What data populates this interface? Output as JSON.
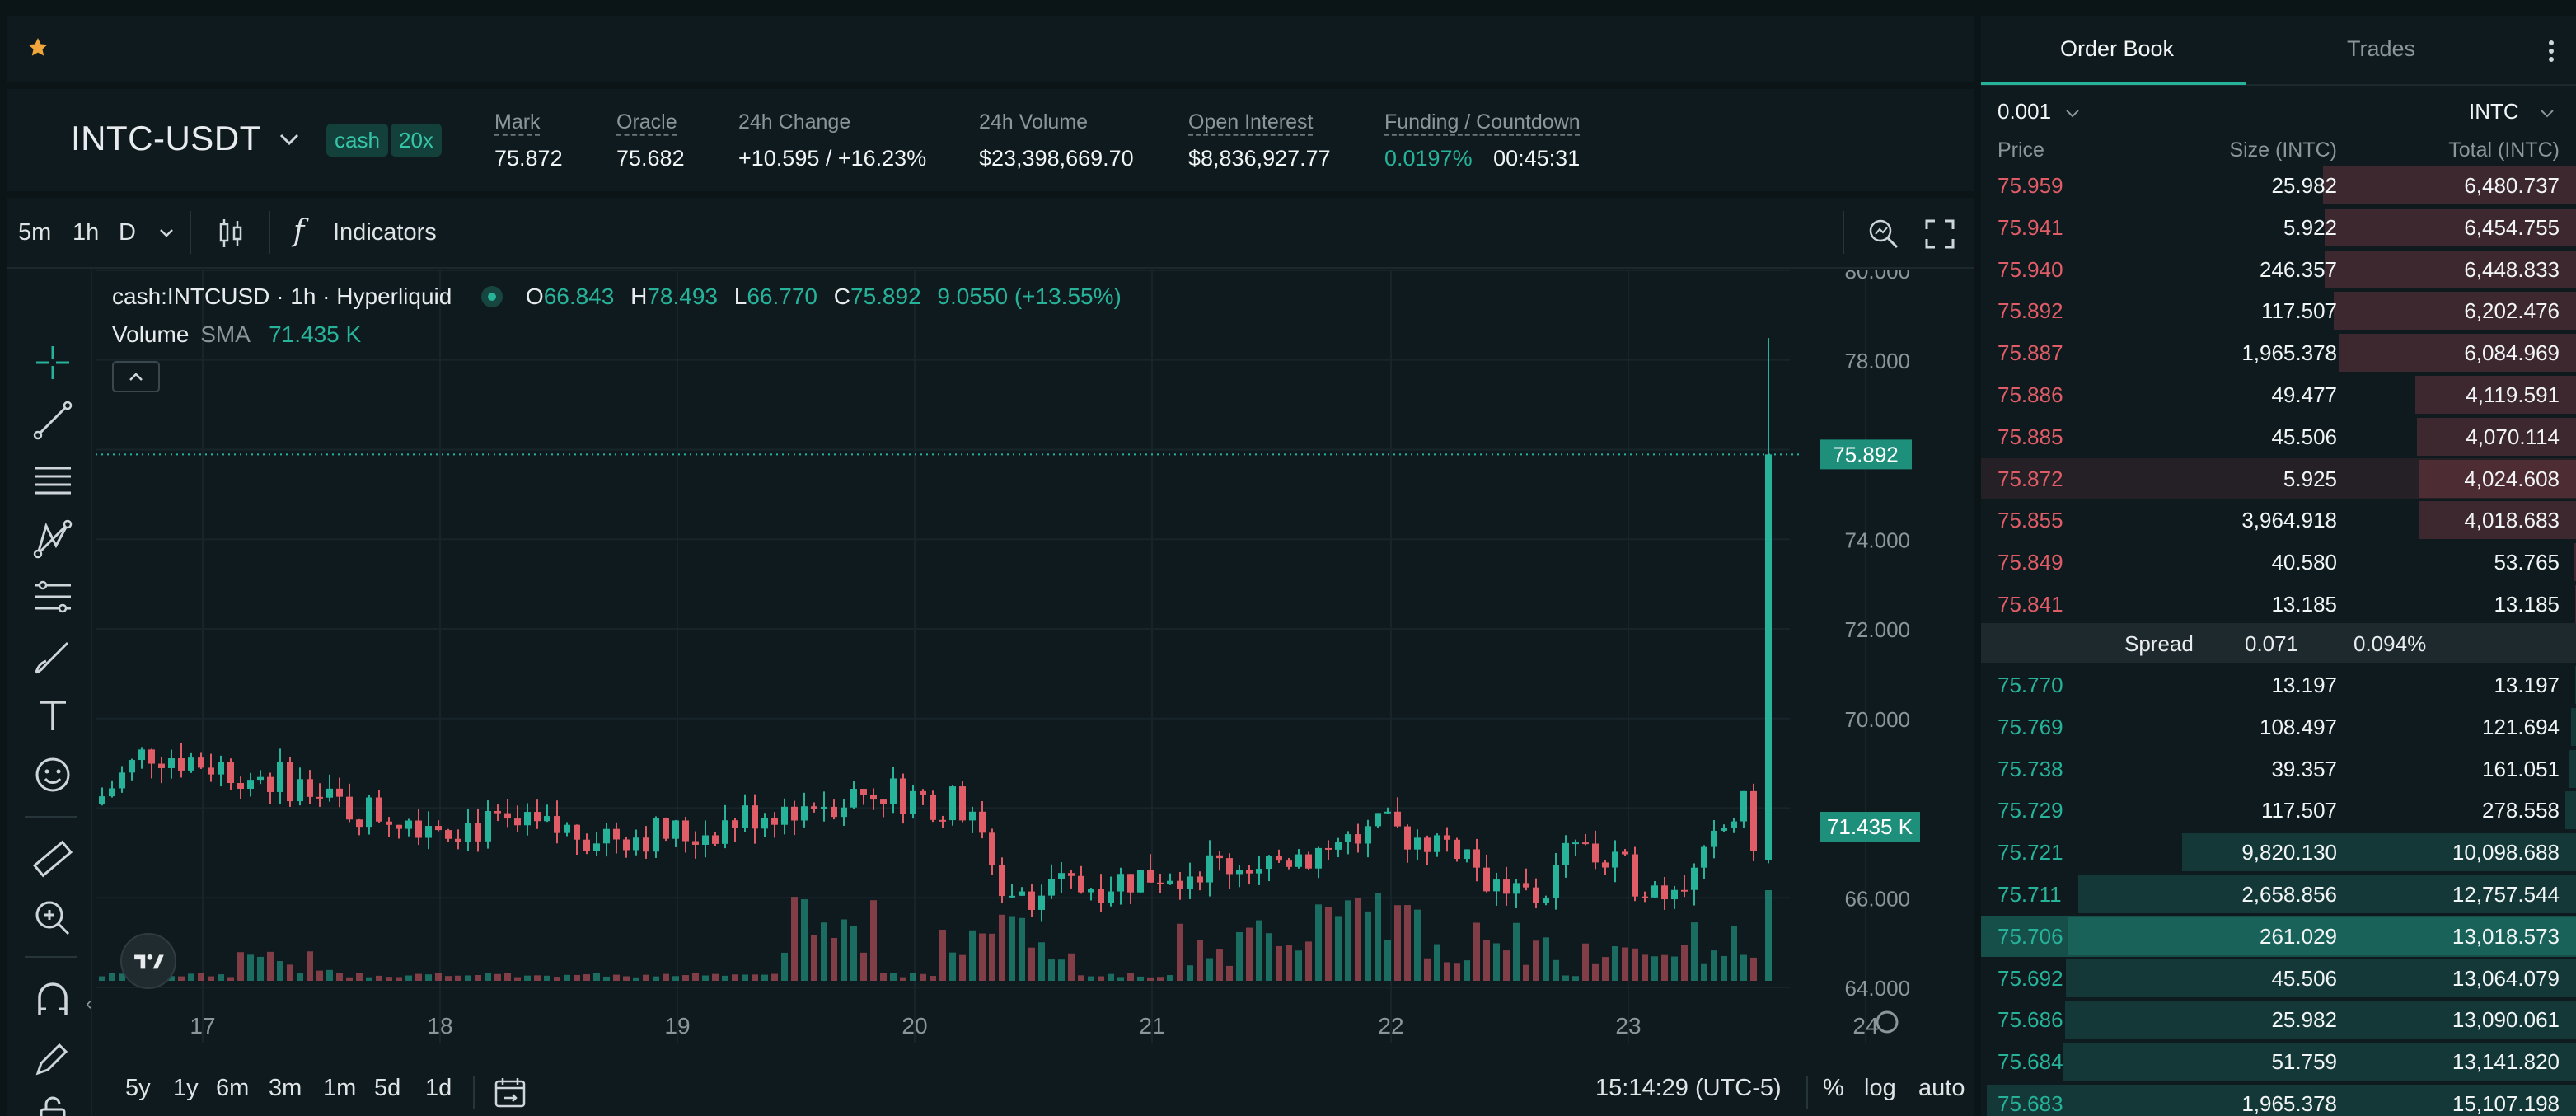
{
  "colors": {
    "green": "#26b39a",
    "red": "#e05d67",
    "accent_star": "#f0a63a"
  },
  "topbar": {
    "favorite_icon": "star-icon"
  },
  "market": {
    "pair": "INTC-USDT",
    "tags": [
      "cash",
      "20x"
    ],
    "stats": [
      {
        "label": "Mark",
        "value": "75.872"
      },
      {
        "label": "Oracle",
        "value": "75.682"
      },
      {
        "label": "24h Change",
        "value": "+10.595 / +16.23%"
      },
      {
        "label": "24h Volume",
        "value": "$23,398,669.70"
      },
      {
        "label": "Open Interest",
        "value": "$8,836,927.77"
      },
      {
        "label": "Funding / Countdown",
        "value": "0.0197%",
        "value2": "00:45:31"
      }
    ]
  },
  "toolbar": {
    "intervals": [
      "5m",
      "1h",
      "D"
    ],
    "active_interval": "1h",
    "indicators_label": "Indicators"
  },
  "legend": {
    "symbol": "cash:INTCUSD · 1h · Hyperliquid",
    "o_label": "O",
    "o": "66.843",
    "h_label": "H",
    "h": "78.493",
    "l_label": "L",
    "l": "66.770",
    "c_label": "C",
    "c": "75.892",
    "change": "9.0550 (+13.55%)",
    "volume_label": "Volume",
    "sma_label": "SMA",
    "sma_value": "71.435 K"
  },
  "price_axis": [
    "80.000",
    "78.000",
    "74.000",
    "72.000",
    "70.000",
    "66.000",
    "64.000"
  ],
  "time_axis": [
    "17",
    "18",
    "19",
    "20",
    "21",
    "22",
    "23",
    "24"
  ],
  "price_marker": "75.892",
  "volume_marker": "71.435 K",
  "bottombar": {
    "ranges": [
      "5y",
      "1y",
      "6m",
      "3m",
      "1m",
      "5d",
      "1d"
    ],
    "clock": "15:14:29 (UTC-5)",
    "percent": "%",
    "log": "log",
    "auto": "auto"
  },
  "orderbook": {
    "tabs": [
      "Order Book",
      "Trades"
    ],
    "tick": "0.001",
    "unit": "INTC",
    "headers": {
      "price": "Price",
      "size": "Size (INTC)",
      "total": "Total (INTC)"
    },
    "asks": [
      {
        "price": "75.959",
        "size": "25.982",
        "total": "6,480.737",
        "depth": 0.425
      },
      {
        "price": "75.941",
        "size": "5.922",
        "total": "6,454.755",
        "depth": 0.423
      },
      {
        "price": "75.940",
        "size": "246.357",
        "total": "6,448.833",
        "depth": 0.423
      },
      {
        "price": "75.892",
        "size": "117.507",
        "total": "6,202.476",
        "depth": 0.407
      },
      {
        "price": "75.887",
        "size": "1,965.378",
        "total": "6,084.969",
        "depth": 0.399
      },
      {
        "price": "75.886",
        "size": "49.477",
        "total": "4,119.591",
        "depth": 0.27
      },
      {
        "price": "75.885",
        "size": "45.506",
        "total": "4,070.114",
        "depth": 0.267
      },
      {
        "price": "75.872",
        "size": "5.925",
        "total": "4,024.608",
        "depth": 0.264
      },
      {
        "price": "75.855",
        "size": "3,964.918",
        "total": "4,018.683",
        "depth": 0.264
      },
      {
        "price": "75.849",
        "size": "40.580",
        "total": "53.765",
        "depth": 0.004
      },
      {
        "price": "75.841",
        "size": "13.185",
        "total": "13.185",
        "depth": 0.001
      }
    ],
    "spread": {
      "label": "Spread",
      "value": "0.071",
      "percent": "0.094%"
    },
    "bids": [
      {
        "price": "75.770",
        "size": "13.197",
        "total": "13.197",
        "depth": 0.001
      },
      {
        "price": "75.769",
        "size": "108.497",
        "total": "121.694",
        "depth": 0.008
      },
      {
        "price": "75.738",
        "size": "39.357",
        "total": "161.051",
        "depth": 0.011
      },
      {
        "price": "75.729",
        "size": "117.507",
        "total": "278.558",
        "depth": 0.018
      },
      {
        "price": "75.721",
        "size": "9,820.130",
        "total": "10,098.688",
        "depth": 0.662
      },
      {
        "price": "75.711",
        "size": "2,658.856",
        "total": "12,757.544",
        "depth": 0.837
      },
      {
        "price": "75.706",
        "size": "261.029",
        "total": "13,018.573",
        "depth": 0.854
      },
      {
        "price": "75.692",
        "size": "45.506",
        "total": "13,064.079",
        "depth": 0.857
      },
      {
        "price": "75.686",
        "size": "25.982",
        "total": "13,090.061",
        "depth": 0.859
      },
      {
        "price": "75.684",
        "size": "51.759",
        "total": "13,141.820",
        "depth": 0.862
      },
      {
        "price": "75.683",
        "size": "1,965.378",
        "total": "15,107.198",
        "depth": 0.991
      }
    ]
  }
}
